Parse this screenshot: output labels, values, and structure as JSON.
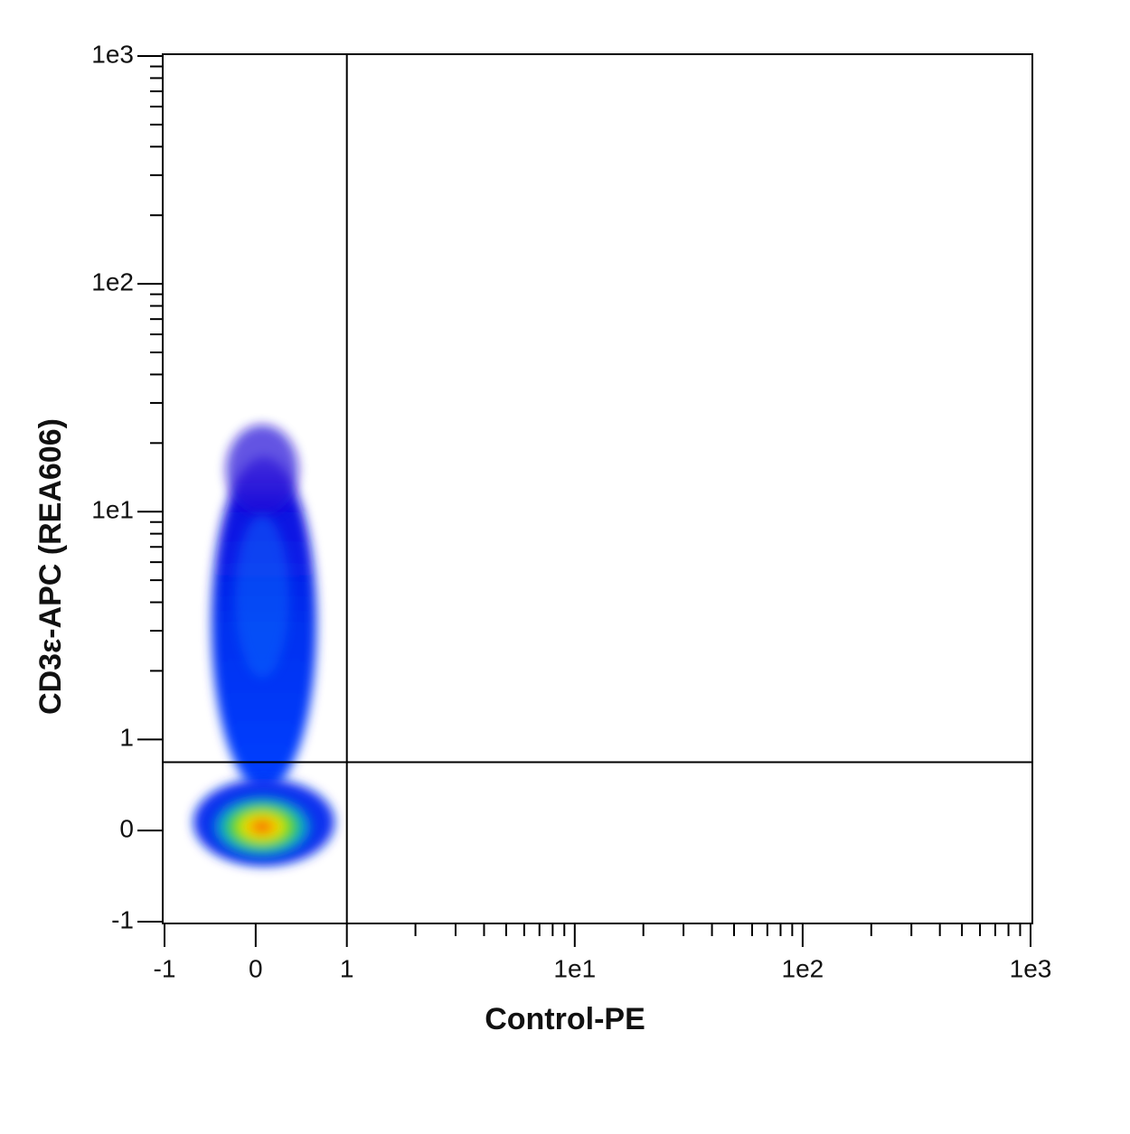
{
  "chart_data": {
    "type": "density",
    "x_label": "Control-PE",
    "y_label": "CD3ε-APC (REA606)",
    "scale": "biexponential",
    "xlim": [
      -1,
      1000
    ],
    "ylim": [
      -1,
      1000
    ],
    "xticks": [
      -1,
      0,
      1,
      {
        "value": 10,
        "label": "1e1"
      },
      {
        "value": 100,
        "label": "1e2"
      },
      {
        "value": 1000,
        "label": "1e3"
      }
    ],
    "yticks": [
      -1,
      0,
      1,
      {
        "value": 10,
        "label": "1e1"
      },
      {
        "value": 100,
        "label": "1e2"
      },
      {
        "value": 1000,
        "label": "1e3"
      }
    ],
    "minor_ticks": [
      2,
      3,
      4,
      5,
      6,
      7,
      8,
      9,
      20,
      30,
      40,
      50,
      60,
      70,
      80,
      90,
      200,
      300,
      400,
      500,
      600,
      700,
      800,
      900
    ],
    "gate": {
      "x": 1,
      "y": 0.75
    }
  }
}
